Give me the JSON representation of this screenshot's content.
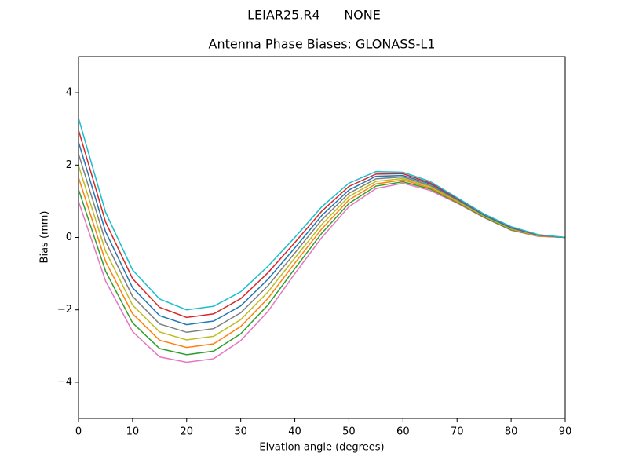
{
  "chart_data": {
    "type": "line",
    "suptitle": "LEIAR25.R4      NONE",
    "title": "Antenna Phase Biases: GLONASS-L1",
    "xlabel": "Elvation angle (degrees)",
    "ylabel": "Bias (mm)",
    "x": [
      0,
      5,
      10,
      15,
      20,
      25,
      30,
      35,
      40,
      45,
      50,
      55,
      60,
      65,
      70,
      75,
      80,
      85,
      90
    ],
    "xlim": [
      0,
      90
    ],
    "xticks": [
      0,
      10,
      20,
      30,
      40,
      50,
      60,
      70,
      80,
      90
    ],
    "ylim": [
      -5,
      5
    ],
    "yticks": [
      {
        "value": -4,
        "label": "−4"
      },
      {
        "value": -2,
        "label": "−2"
      },
      0,
      2,
      4
    ],
    "series": [
      {
        "color": "#e377c2",
        "values": [
          1.0,
          -1.2,
          -2.6,
          -3.3,
          -3.45,
          -3.35,
          -2.85,
          -2.05,
          -1.0,
          0.0,
          0.85,
          1.35,
          1.5,
          1.3,
          0.95,
          0.55,
          0.2,
          0.03,
          0
        ]
      },
      {
        "color": "#2ca02c",
        "values": [
          1.33,
          -0.93,
          -2.36,
          -3.07,
          -3.24,
          -3.14,
          -2.66,
          -1.87,
          -0.86,
          0.12,
          0.94,
          1.42,
          1.54,
          1.34,
          0.97,
          0.56,
          0.21,
          0.04,
          0
        ]
      },
      {
        "color": "#ff7f0e",
        "values": [
          1.66,
          -0.66,
          -2.11,
          -2.84,
          -3.04,
          -2.94,
          -2.46,
          -1.69,
          -0.71,
          0.24,
          1.04,
          1.48,
          1.59,
          1.37,
          0.99,
          0.58,
          0.23,
          0.04,
          0
        ]
      },
      {
        "color": "#bcbd22",
        "values": [
          1.99,
          -0.38,
          -1.87,
          -2.61,
          -2.83,
          -2.73,
          -2.27,
          -1.51,
          -0.57,
          0.36,
          1.13,
          1.55,
          1.63,
          1.41,
          1.01,
          0.59,
          0.24,
          0.05,
          0
        ]
      },
      {
        "color": "#7f7f7f",
        "values": [
          2.31,
          -0.11,
          -1.63,
          -2.39,
          -2.62,
          -2.52,
          -2.08,
          -1.34,
          -0.43,
          0.49,
          1.22,
          1.62,
          1.67,
          1.44,
          1.04,
          0.61,
          0.26,
          0.06,
          0
        ]
      },
      {
        "color": "#1f77b4",
        "values": [
          2.64,
          0.16,
          -1.39,
          -2.16,
          -2.41,
          -2.31,
          -1.89,
          -1.16,
          -0.29,
          0.61,
          1.31,
          1.69,
          1.71,
          1.48,
          1.06,
          0.62,
          0.27,
          0.07,
          0
        ]
      },
      {
        "color": "#d62728",
        "values": [
          2.97,
          0.43,
          -1.14,
          -1.93,
          -2.21,
          -2.11,
          -1.69,
          -0.98,
          -0.14,
          0.73,
          1.41,
          1.75,
          1.76,
          1.51,
          1.08,
          0.64,
          0.29,
          0.07,
          0
        ]
      },
      {
        "color": "#17becf",
        "values": [
          3.3,
          0.7,
          -0.9,
          -1.7,
          -2.0,
          -1.9,
          -1.5,
          -0.8,
          0.0,
          0.85,
          1.5,
          1.82,
          1.8,
          1.55,
          1.1,
          0.65,
          0.3,
          0.08,
          0
        ]
      }
    ]
  }
}
